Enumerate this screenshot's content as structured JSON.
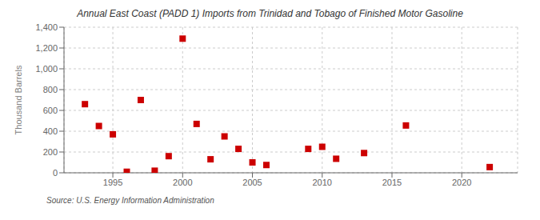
{
  "chart_data": {
    "type": "scatter",
    "title": "Annual East Coast (PADD 1) Imports from Trinidad and Tobago of Finished Motor Gasoline",
    "ylabel": "Thousand Barrels",
    "annotations": [
      "Source: U.S. Energy Information Administration"
    ],
    "x": [
      1993,
      1994,
      1995,
      1996,
      1997,
      1998,
      1999,
      2000,
      2001,
      2002,
      2003,
      2004,
      2005,
      2006,
      2009,
      2010,
      2011,
      2013,
      2016,
      2022
    ],
    "values": [
      660,
      450,
      370,
      10,
      700,
      20,
      160,
      1290,
      470,
      130,
      350,
      230,
      100,
      75,
      230,
      250,
      135,
      190,
      455,
      55
    ],
    "color": "#cc0000",
    "marker": "square",
    "grid": true,
    "xlim": [
      1991.5,
      2024
    ],
    "xticks": [
      1995,
      2000,
      2005,
      2010,
      2015,
      2020
    ],
    "ylim": [
      0,
      1400
    ],
    "yticks": [
      0,
      200,
      400,
      600,
      {
        "value": 1000,
        "label": "1,000"
      },
      {
        "value": 1200,
        "label": "1,200"
      },
      {
        "value": 1400,
        "label": "1,400"
      },
      800
    ]
  }
}
